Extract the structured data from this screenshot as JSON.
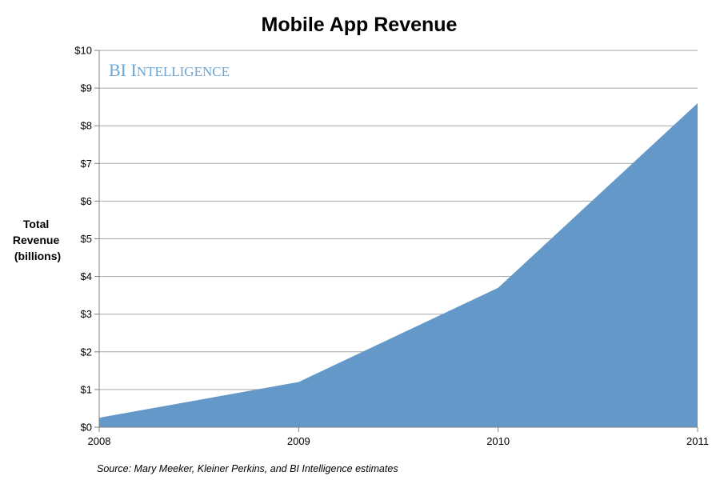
{
  "chart_data": {
    "type": "area",
    "title": "Mobile App Revenue",
    "ylabel": [
      "Total",
      "Revenue",
      "(billions)"
    ],
    "xlabel": "",
    "categories": [
      "2008",
      "2009",
      "2010",
      "2011"
    ],
    "values": [
      0.25,
      1.2,
      3.7,
      8.6
    ],
    "ylim": [
      0,
      10
    ],
    "yticks": [
      "$0",
      "$1",
      "$2",
      "$3",
      "$4",
      "$5",
      "$6",
      "$7",
      "$8",
      "$9",
      "$10"
    ],
    "grid": true,
    "legend": "none",
    "fill_color": "#6398c9",
    "source": "Source: Mary Meeker, Kleiner Perkins, and BI Intelligence estimates"
  },
  "watermark": {
    "prefix": "BI",
    "first_letter": "I",
    "rest": "NTELLIGENCE",
    "color": "#6aa6d8"
  }
}
